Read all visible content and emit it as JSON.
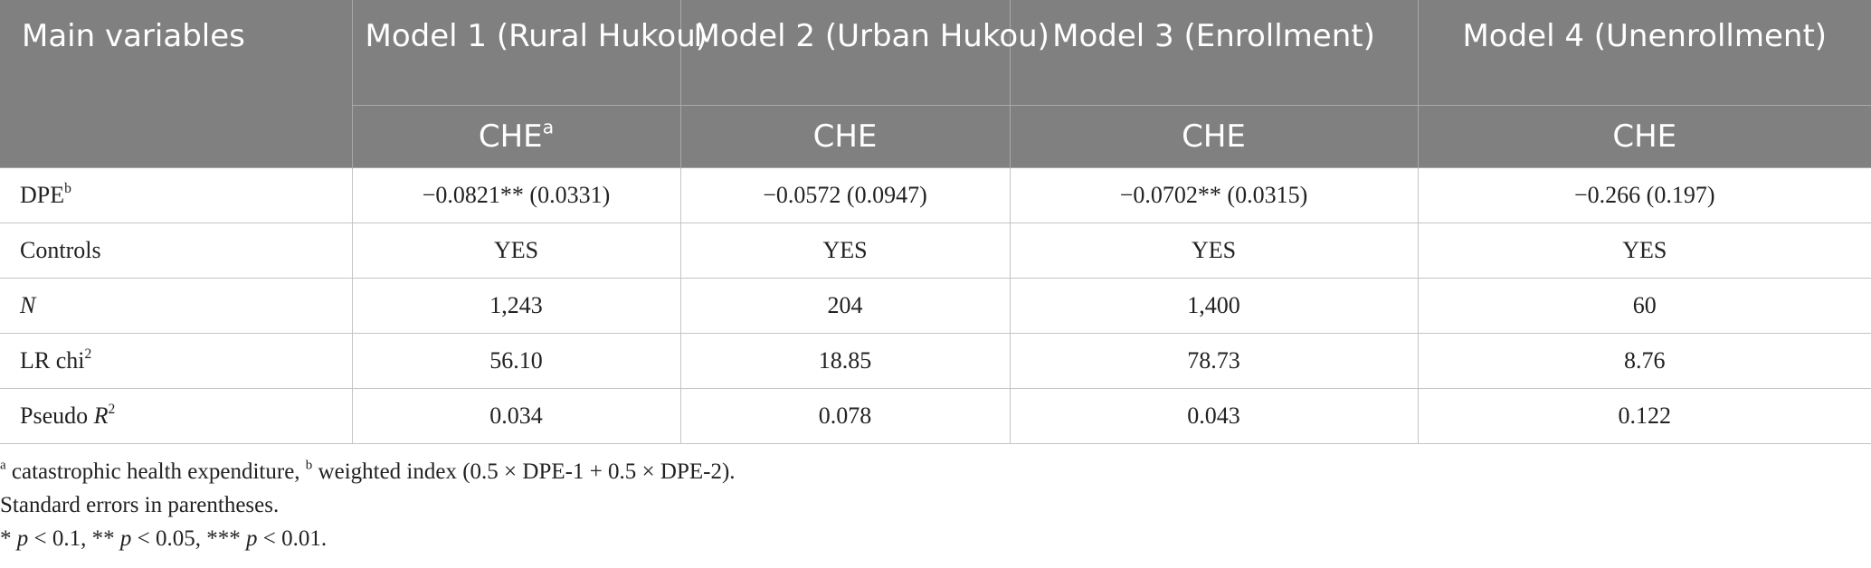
{
  "table": {
    "header": {
      "first": [
        {
          "text": "Main variables"
        }
      ],
      "models": [
        [
          {
            "text": "Model 1 (Rural Hukou)"
          }
        ],
        [
          {
            "text": "Model 2 (Urban Hukou)"
          }
        ],
        [
          {
            "text": "Model 3 (Enrollment)"
          }
        ],
        [
          {
            "text": "Model 4 (Unenrollment)"
          }
        ]
      ],
      "dependent": [
        [
          {
            "text": "CHE"
          },
          {
            "text": "a",
            "style": "sup"
          }
        ],
        [
          {
            "text": "CHE"
          }
        ],
        [
          {
            "text": "CHE"
          }
        ],
        [
          {
            "text": "CHE"
          }
        ]
      ]
    },
    "rows": [
      {
        "label": [
          {
            "text": "DPE"
          },
          {
            "text": "b",
            "style": "sup"
          }
        ],
        "cells": [
          "−0.0821** (0.0331)",
          "−0.0572 (0.0947)",
          "−0.0702** (0.0315)",
          "−0.266 (0.197)"
        ]
      },
      {
        "label": [
          {
            "text": "Controls"
          }
        ],
        "cells": [
          "YES",
          "YES",
          "YES",
          "YES"
        ]
      },
      {
        "label": [
          {
            "text": "N",
            "style": "italic"
          }
        ],
        "cells": [
          "1,243",
          "204",
          "1,400",
          "60"
        ]
      },
      {
        "label": [
          {
            "text": "LR chi"
          },
          {
            "text": "2",
            "style": "sup"
          }
        ],
        "cells": [
          "56.10",
          "18.85",
          "78.73",
          "8.76"
        ]
      },
      {
        "label": [
          {
            "text": "Pseudo "
          },
          {
            "text": "R",
            "style": "italic"
          },
          {
            "text": "2",
            "style": "sup"
          }
        ],
        "cells": [
          "0.034",
          "0.078",
          "0.043",
          "0.122"
        ]
      }
    ]
  },
  "notes": [
    [
      {
        "text": "a",
        "style": "sup"
      },
      {
        "text": " catastrophic health expenditure, "
      },
      {
        "text": "b",
        "style": "sup"
      },
      {
        "text": " weighted index (0.5 × DPE-1 + 0.5 × DPE-2)."
      }
    ],
    [
      {
        "text": "Standard errors in parentheses."
      }
    ],
    [
      {
        "text": "* "
      },
      {
        "text": "p",
        "style": "italic"
      },
      {
        "text": " < 0.1, ** "
      },
      {
        "text": "p",
        "style": "italic"
      },
      {
        "text": " < 0.05, *** "
      },
      {
        "text": "p",
        "style": "italic"
      },
      {
        "text": " < 0.01."
      }
    ]
  ]
}
